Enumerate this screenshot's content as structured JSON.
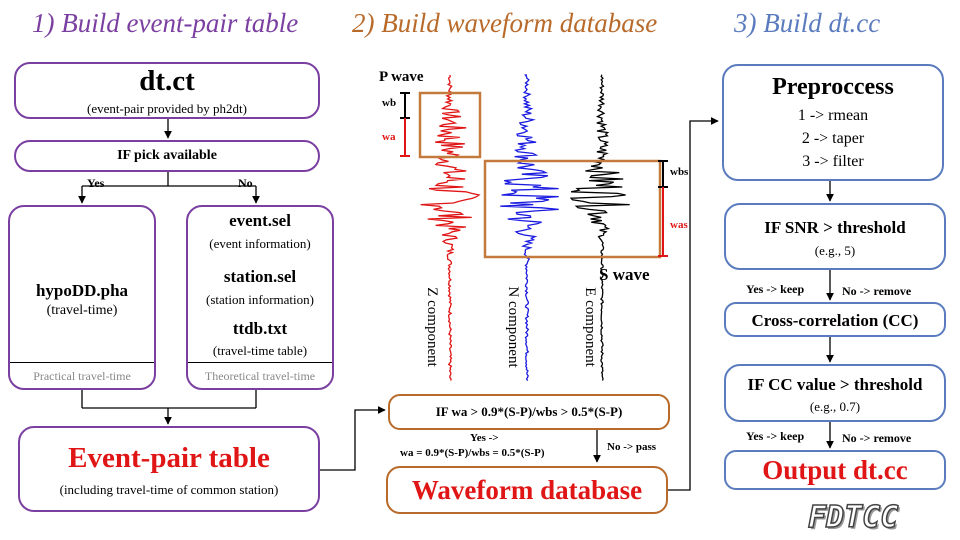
{
  "headers": {
    "step1": "1) Build event-pair table",
    "step2": "2) Build waveform database",
    "step3": "3) Build dt.cc"
  },
  "colors": {
    "purple": "#7a3fa0",
    "orange": "#b86a2a",
    "blue": "#5a7bbd",
    "red": "#e01515",
    "z_trace": "#e01515",
    "n_trace": "#1a1ae0",
    "e_trace": "#000000"
  },
  "col1": {
    "dtct_title": "dt.ct",
    "dtct_sub": "(event-pair provided by ph2dt)",
    "pick": "IF pick available",
    "yes": "Yes",
    "no": "No",
    "pha_title": "hypoDD.pha",
    "pha_sub": "(travel-time)",
    "pha_footer": "Practical travel-time",
    "event_title": "event.sel",
    "event_sub": "(event information)",
    "station_title": "station.sel",
    "station_sub": "(station information)",
    "ttdb_title": "ttdb.txt",
    "ttdb_sub": "(travel-time table)",
    "theo_footer": "Theoretical travel-time",
    "ept_title": "Event-pair table",
    "ept_sub": "(including travel-time of common station)"
  },
  "col2": {
    "p_wave": "P wave",
    "s_wave": "S wave",
    "wb": "wb",
    "wa": "wa",
    "wbs": "wbs",
    "was": "was",
    "z_comp": "Z component",
    "n_comp": "N component",
    "e_comp": "E component",
    "condition": "IF wa > 0.9*(S-P)/wbs > 0.5*(S-P)",
    "yes_line1": "Yes ->",
    "yes_line2": "wa = 0.9*(S-P)/wbs = 0.5*(S-P)",
    "no_pass": "No -> pass",
    "wdb_title": "Waveform database"
  },
  "col3": {
    "pre_title": "Preproccess",
    "pre_1": "1 -> rmean",
    "pre_2": "2 -> taper",
    "pre_3": "3 -> filter",
    "snr_title": "IF SNR > threshold",
    "snr_sub": "(e.g., 5)",
    "yes_keep_1": "Yes -> keep",
    "no_remove_1": "No -> remove",
    "cc_title": "Cross-correlation (CC)",
    "ccv_title": "IF CC value > threshold",
    "ccv_sub": "(e.g., 0.7)",
    "yes_keep_2": "Yes -> keep",
    "no_remove_2": "No -> remove",
    "out_title": "Output dt.cc"
  },
  "logo": "FDTCC"
}
